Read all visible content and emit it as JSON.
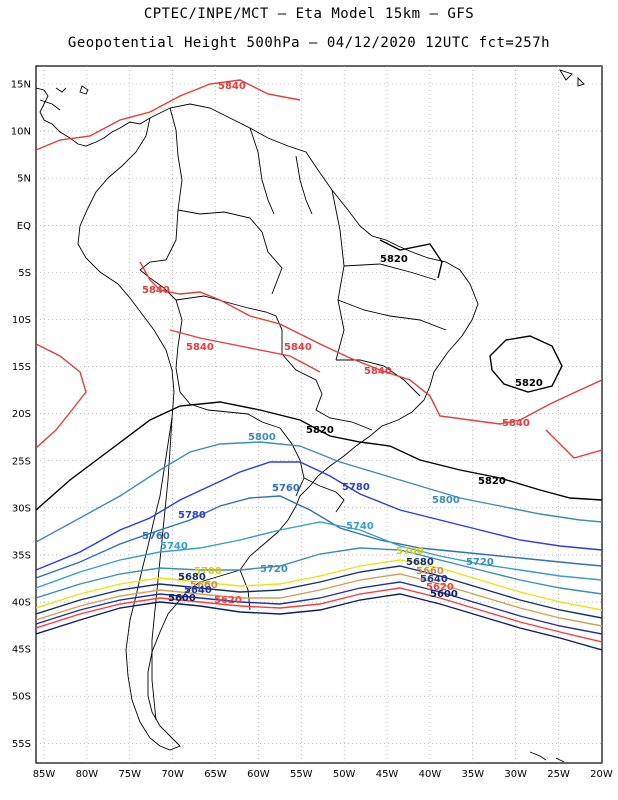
{
  "title": {
    "line1": "CPTEC/INPE/MCT –  Eta Model 15km – GFS",
    "line2": "Geopotential Height 500hPa – 04/12/2020 12UTC fct=257h"
  },
  "axes": {
    "lat_labels": [
      "15N",
      "10N",
      "5N",
      "EQ",
      "5S",
      "10S",
      "15S",
      "20S",
      "25S",
      "30S",
      "35S",
      "40S",
      "45S",
      "50S",
      "55S"
    ],
    "lon_labels": [
      "85W",
      "80W",
      "75W",
      "70W",
      "65W",
      "60W",
      "55W",
      "50W",
      "45W",
      "40W",
      "35W",
      "30W",
      "25W",
      "20W"
    ]
  },
  "contours": [
    {
      "value": "5840",
      "color": "#e83b3b"
    },
    {
      "value": "5820",
      "color": "#000000"
    },
    {
      "value": "5800",
      "color": "#3b8fb0"
    },
    {
      "value": "5780",
      "color": "#2a3fd6"
    },
    {
      "value": "5760",
      "color": "#3070b8"
    },
    {
      "value": "5740",
      "color": "#35a0c8"
    },
    {
      "value": "5720",
      "color": "#3a8fb8"
    },
    {
      "value": "5700",
      "color": "#f0e010"
    },
    {
      "value": "5680",
      "color": "#123070"
    },
    {
      "value": "5660",
      "color": "#d0a050"
    },
    {
      "value": "5640",
      "color": "#2030a0"
    },
    {
      "value": "5620",
      "color": "#f04040"
    },
    {
      "value": "5600",
      "color": "#102060"
    }
  ],
  "contour_labels": [
    {
      "text": "5840",
      "color": "#e83b3b"
    },
    {
      "text": "5840",
      "color": "#e83b3b"
    },
    {
      "text": "5840",
      "color": "#e83b3b"
    },
    {
      "text": "5840",
      "color": "#e83b3b"
    },
    {
      "text": "5840",
      "color": "#e83b3b"
    },
    {
      "text": "5840",
      "color": "#e83b3b"
    },
    {
      "text": "5820",
      "color": "#000000"
    },
    {
      "text": "5820",
      "color": "#000000"
    },
    {
      "text": "5820",
      "color": "#000000"
    },
    {
      "text": "5820",
      "color": "#000000"
    },
    {
      "text": "5800",
      "color": "#3b8fb0"
    },
    {
      "text": "5800",
      "color": "#3b8fb0"
    },
    {
      "text": "5780",
      "color": "#2a3fd6"
    },
    {
      "text": "5780",
      "color": "#2a3fd6"
    },
    {
      "text": "5760",
      "color": "#3070b8"
    },
    {
      "text": "5760",
      "color": "#3070b8"
    },
    {
      "text": "5740",
      "color": "#35a0c8"
    },
    {
      "text": "5740",
      "color": "#35a0c8"
    },
    {
      "text": "5720",
      "color": "#3a8fb8"
    },
    {
      "text": "5720",
      "color": "#3a8fb8"
    },
    {
      "text": "5700",
      "color": "#e0c800"
    },
    {
      "text": "5700",
      "color": "#e0c800"
    },
    {
      "text": "5680",
      "color": "#123070"
    },
    {
      "text": "5680",
      "color": "#123070"
    },
    {
      "text": "5660",
      "color": "#c89040"
    },
    {
      "text": "5660",
      "color": "#c89040"
    },
    {
      "text": "5640",
      "color": "#2030a0"
    },
    {
      "text": "5640",
      "color": "#2030a0"
    },
    {
      "text": "5620",
      "color": "#f04040"
    },
    {
      "text": "5620",
      "color": "#f04040"
    },
    {
      "text": "5600",
      "color": "#102060"
    },
    {
      "text": "5600",
      "color": "#102060"
    }
  ]
}
